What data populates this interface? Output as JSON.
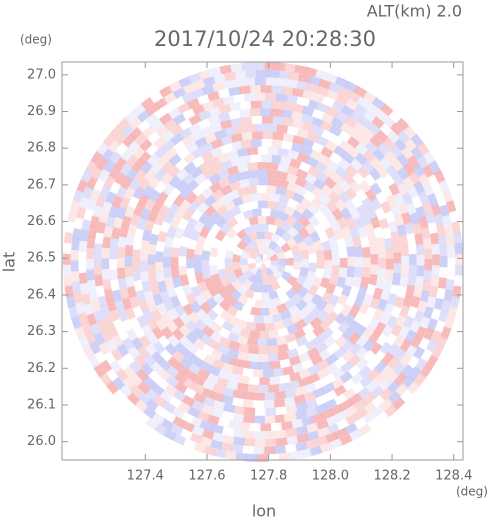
{
  "chart_data": {
    "type": "radar-ppi",
    "title": "2017/10/24 20:28:30",
    "altitude_label": "ALT(km) 2.0",
    "x_label": "lon",
    "y_label": "lat",
    "x_unit": "(deg)",
    "y_unit": "(deg)",
    "xlim": [
      127.13,
      128.43
    ],
    "ylim": [
      25.95,
      27.035
    ],
    "xticks": [
      {
        "value": 127.4,
        "label": "127.4"
      },
      {
        "value": 127.6,
        "label": "127.6"
      },
      {
        "value": 127.8,
        "label": "127.8"
      },
      {
        "value": 128.0,
        "label": "128.0"
      },
      {
        "value": 128.2,
        "label": "128.2"
      },
      {
        "value": 128.4,
        "label": "128.4"
      }
    ],
    "yticks": [
      {
        "value": 26.0,
        "label": "26.0"
      },
      {
        "value": 26.1,
        "label": "26.1"
      },
      {
        "value": 26.2,
        "label": "26.2"
      },
      {
        "value": 26.3,
        "label": "26.3"
      },
      {
        "value": 26.4,
        "label": "26.4"
      },
      {
        "value": 26.5,
        "label": "26.5"
      },
      {
        "value": 26.6,
        "label": "26.6"
      },
      {
        "value": 26.7,
        "label": "26.7"
      },
      {
        "value": 26.8,
        "label": "26.8"
      },
      {
        "value": 26.9,
        "label": "26.9"
      },
      {
        "value": 27.0,
        "label": "27.0"
      }
    ]
  }
}
